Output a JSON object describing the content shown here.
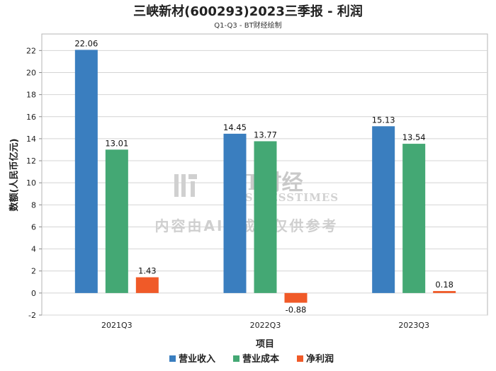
{
  "chart_data": {
    "type": "bar",
    "title": "三峡新材(600293)2023三季报 - 利润",
    "subtitle": "Q1-Q3 - BT财经绘制",
    "xlabel": "项目",
    "ylabel": "数额(人民币亿元)",
    "categories": [
      "2021Q3",
      "2022Q3",
      "2023Q3"
    ],
    "series": [
      {
        "name": "营业收入",
        "color": "#3a7ebf",
        "values": [
          22.06,
          14.45,
          15.13
        ]
      },
      {
        "name": "营业成本",
        "color": "#44a874",
        "values": [
          13.01,
          13.77,
          13.54
        ]
      },
      {
        "name": "净利润",
        "color": "#f05a28",
        "values": [
          1.43,
          -0.88,
          0.18
        ]
      }
    ],
    "ylim": [
      -2,
      23.5
    ],
    "yticks": [
      -2,
      0,
      2,
      4,
      6,
      8,
      10,
      12,
      14,
      16,
      18,
      20,
      22
    ],
    "grid": true,
    "legend_position": "bottom"
  },
  "watermark": {
    "logo_text": "BT财经",
    "logo_sub": "BUSINESSTIMES",
    "note": "内容由AI生成，仅供参考"
  }
}
